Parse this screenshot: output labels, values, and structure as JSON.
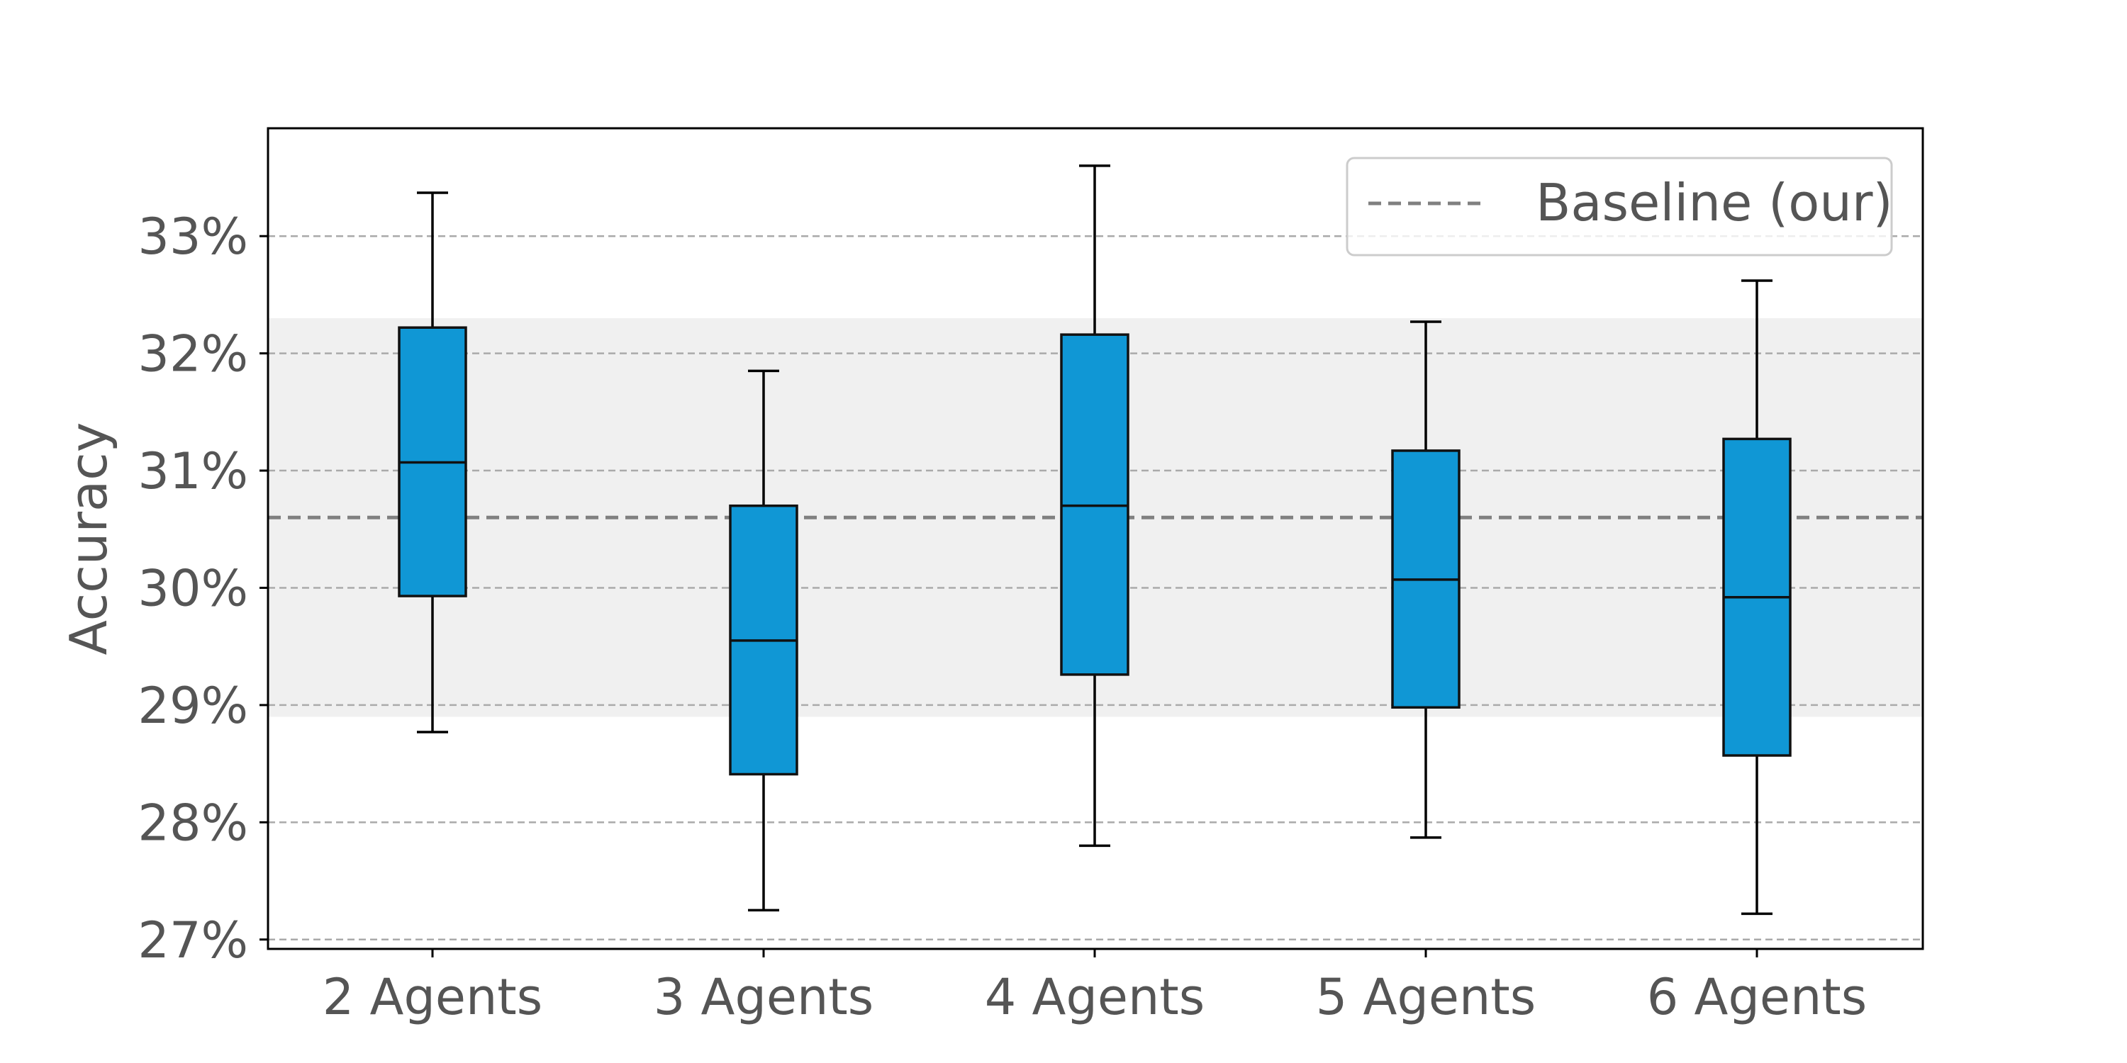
{
  "chart_data": {
    "type": "box",
    "title": "",
    "xlabel": "",
    "ylabel": "Accuracy",
    "ylim": [
      26.92,
      33.92
    ],
    "yticks": [
      27,
      28,
      29,
      30,
      31,
      32,
      33
    ],
    "ytick_labels": [
      "27%",
      "28%",
      "29%",
      "30%",
      "31%",
      "32%",
      "33%"
    ],
    "categories": [
      "2 Agents",
      "3 Agents",
      "4 Agents",
      "5 Agents",
      "6 Agents"
    ],
    "boxes": [
      {
        "whisker_low": 28.77,
        "q1": 29.93,
        "median": 31.07,
        "q3": 32.22,
        "whisker_high": 33.37
      },
      {
        "whisker_low": 27.25,
        "q1": 28.41,
        "median": 29.55,
        "q3": 30.7,
        "whisker_high": 31.85
      },
      {
        "whisker_low": 27.8,
        "q1": 29.26,
        "median": 30.7,
        "q3": 32.16,
        "whisker_high": 33.6
      },
      {
        "whisker_low": 27.87,
        "q1": 28.98,
        "median": 30.07,
        "q3": 31.17,
        "whisker_high": 32.27
      },
      {
        "whisker_low": 27.22,
        "q1": 28.57,
        "median": 29.92,
        "q3": 31.27,
        "whisker_high": 32.62
      }
    ],
    "baseline": {
      "label": "Baseline (our)",
      "value": 30.6,
      "band": [
        28.9,
        32.3
      ]
    },
    "grid": true,
    "legend_position": "top-right",
    "colors": {
      "box_fill": "#1097d5",
      "box_edge": "#111111",
      "baseline_line": "#808080",
      "band_fill": "#f0f0f0",
      "grid": "#aaaaaa",
      "text": "#555555"
    }
  }
}
